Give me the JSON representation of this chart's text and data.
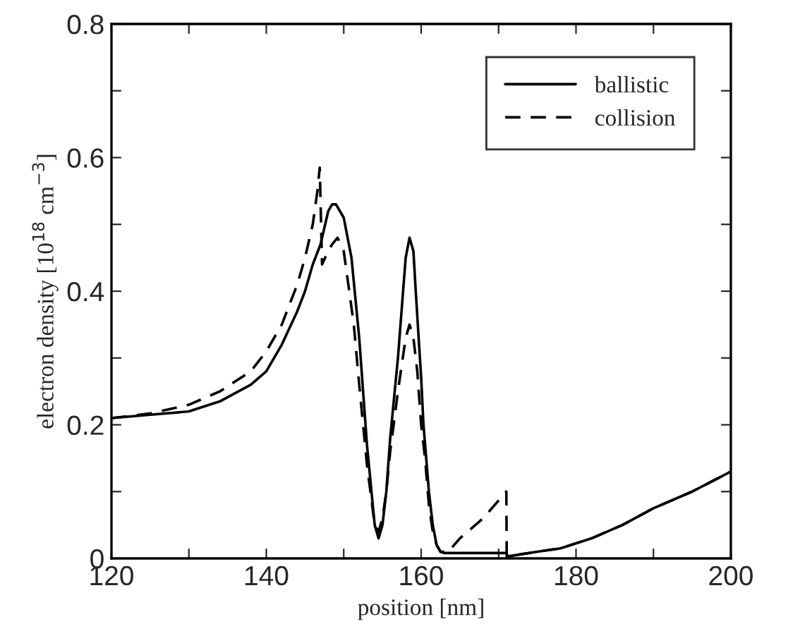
{
  "chart_data": {
    "type": "line",
    "xlabel": "position [nm]",
    "ylabel": "electron density [10$^{18}$ cm$^{−3}$]",
    "xlim": [
      120,
      200
    ],
    "ylim": [
      0,
      0.8
    ],
    "xticks": [
      120,
      {
        "value": 130,
        "label": null
      },
      140,
      {
        "value": 150,
        "label": null
      },
      160,
      {
        "value": 170,
        "label": null
      },
      180,
      {
        "value": 190,
        "label": null
      },
      200
    ],
    "yticks": [
      0,
      {
        "value": 0.1,
        "label": null
      },
      0.2,
      {
        "value": 0.3,
        "label": null
      },
      0.4,
      {
        "value": 0.5,
        "label": null
      },
      0.6,
      {
        "value": 0.7,
        "label": null
      },
      0.8
    ],
    "legend": "top right",
    "grid": false,
    "series": [
      {
        "name": "ballistic",
        "color": "#000000",
        "line_style": "solid",
        "x": [
          120,
          125,
          130,
          134,
          138,
          140,
          142,
          144,
          145,
          146,
          147,
          148,
          148.5,
          149,
          150,
          151,
          152,
          152.5,
          153,
          154,
          154.5,
          155,
          155.5,
          156,
          157,
          158,
          158.5,
          159,
          159.3,
          160,
          160.3,
          161,
          161.5,
          162,
          162.5,
          163,
          171,
          171.2,
          175,
          178,
          182,
          186,
          190,
          195,
          200
        ],
        "values": [
          0.21,
          0.215,
          0.22,
          0.235,
          0.26,
          0.28,
          0.32,
          0.37,
          0.4,
          0.44,
          0.47,
          0.52,
          0.53,
          0.53,
          0.51,
          0.45,
          0.33,
          0.25,
          0.17,
          0.05,
          0.03,
          0.05,
          0.1,
          0.18,
          0.3,
          0.45,
          0.48,
          0.46,
          0.4,
          0.27,
          0.2,
          0.1,
          0.05,
          0.02,
          0.01,
          0.008,
          0.008,
          0.003,
          0.01,
          0.015,
          0.03,
          0.05,
          0.075,
          0.1,
          0.13
        ]
      },
      {
        "name": "collision",
        "color": "#000000",
        "line_style": "dashed",
        "x": [
          120,
          125,
          130,
          134,
          138,
          140,
          142,
          144,
          145,
          146,
          146.6,
          146.9,
          147.2,
          148,
          148.5,
          149.2,
          150,
          151.3,
          152,
          152.5,
          153,
          154,
          154.5,
          155,
          155.5,
          156,
          157,
          158,
          158.5,
          159,
          159.5,
          160,
          160.5,
          161,
          161.5,
          162,
          162.5,
          163.5,
          165,
          168,
          171,
          171.05,
          175,
          178,
          182,
          186,
          190,
          195,
          200
        ],
        "values": [
          0.21,
          0.217,
          0.23,
          0.25,
          0.28,
          0.31,
          0.35,
          0.41,
          0.45,
          0.5,
          0.55,
          0.585,
          0.44,
          0.46,
          0.47,
          0.48,
          0.46,
          0.35,
          0.26,
          0.2,
          0.14,
          0.05,
          0.04,
          0.06,
          0.1,
          0.16,
          0.25,
          0.33,
          0.35,
          0.33,
          0.28,
          0.2,
          0.15,
          0.08,
          0.04,
          0.02,
          0.01,
          0.01,
          0.03,
          0.06,
          0.1,
          0.003,
          0.01,
          0.015,
          0.03,
          0.05,
          0.075,
          0.1,
          0.13
        ]
      }
    ]
  }
}
